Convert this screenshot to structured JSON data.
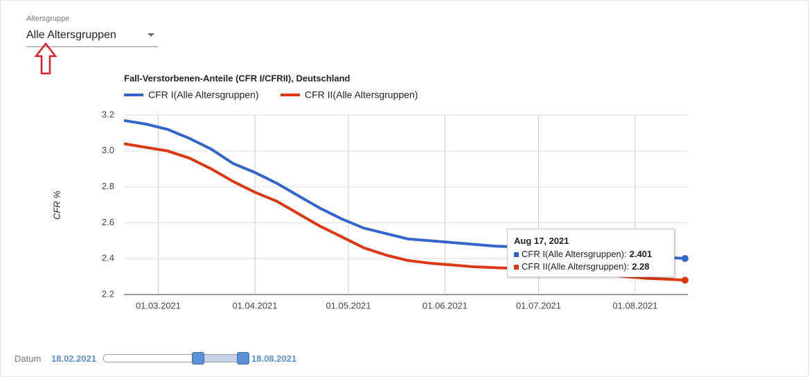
{
  "form": {
    "label": "Altersgruppe",
    "select": "Alle Altersgruppen"
  },
  "slider": {
    "label": "Datum",
    "start": "18.02.2021",
    "end": "18.08.2021"
  },
  "chart_data": {
    "type": "line",
    "title": "Fall-Verstorbenen-Anteile (CFR I/CFRII), Deutschland",
    "y_label": "CFR %",
    "legend": "top",
    "grid": true,
    "x": [
      "18.02.2021",
      "25.02.2021",
      "04.03.2021",
      "11.03.2021",
      "18.03.2021",
      "25.03.2021",
      "01.04.2021",
      "08.04.2021",
      "15.04.2021",
      "22.04.2021",
      "29.04.2021",
      "06.05.2021",
      "13.05.2021",
      "20.05.2021",
      "27.05.2021",
      "03.06.2021",
      "10.06.2021",
      "17.06.2021",
      "24.06.2021",
      "01.07.2021",
      "08.07.2021",
      "15.07.2021",
      "22.07.2021",
      "29.07.2021",
      "05.08.2021",
      "12.08.2021",
      "17.08.2021"
    ],
    "xlim": [
      "18.02.2021",
      "17.08.2021"
    ],
    "xticks": [
      "01.03.2021",
      "01.04.2021",
      "01.05.2021",
      "01.06.2021",
      "01.07.2021",
      "01.08.2021"
    ],
    "ylim": [
      2.2,
      3.2
    ],
    "yticks": [
      2.2,
      2.4,
      2.6,
      2.8,
      {
        "value": 3,
        "label": "3.0"
      },
      3.2
    ],
    "series": [
      {
        "name": "CFR I(Alle Altersgruppen)",
        "color": "#3366cc",
        "values": [
          3.17,
          3.15,
          3.12,
          3.07,
          3.01,
          2.93,
          2.88,
          2.82,
          2.75,
          2.68,
          2.62,
          2.57,
          2.54,
          2.51,
          2.5,
          2.49,
          2.48,
          2.47,
          2.465,
          2.46,
          2.45,
          2.44,
          2.43,
          2.42,
          2.41,
          2.405,
          2.401
        ]
      },
      {
        "name": "CFR II(Alle Altersgruppen)",
        "color": "#dc3912",
        "values": [
          3.04,
          3.02,
          3.0,
          2.96,
          2.9,
          2.83,
          2.77,
          2.72,
          2.65,
          2.58,
          2.52,
          2.46,
          2.42,
          2.39,
          2.375,
          2.365,
          2.355,
          2.35,
          2.345,
          2.34,
          2.33,
          2.32,
          2.31,
          2.3,
          2.29,
          2.285,
          2.28
        ]
      }
    ],
    "tooltip": {
      "title": "Aug 17, 2021",
      "rows": [
        "CFR I(Alle Altersgruppen):",
        "CFR II(Alle Altersgruppen):"
      ]
    }
  }
}
